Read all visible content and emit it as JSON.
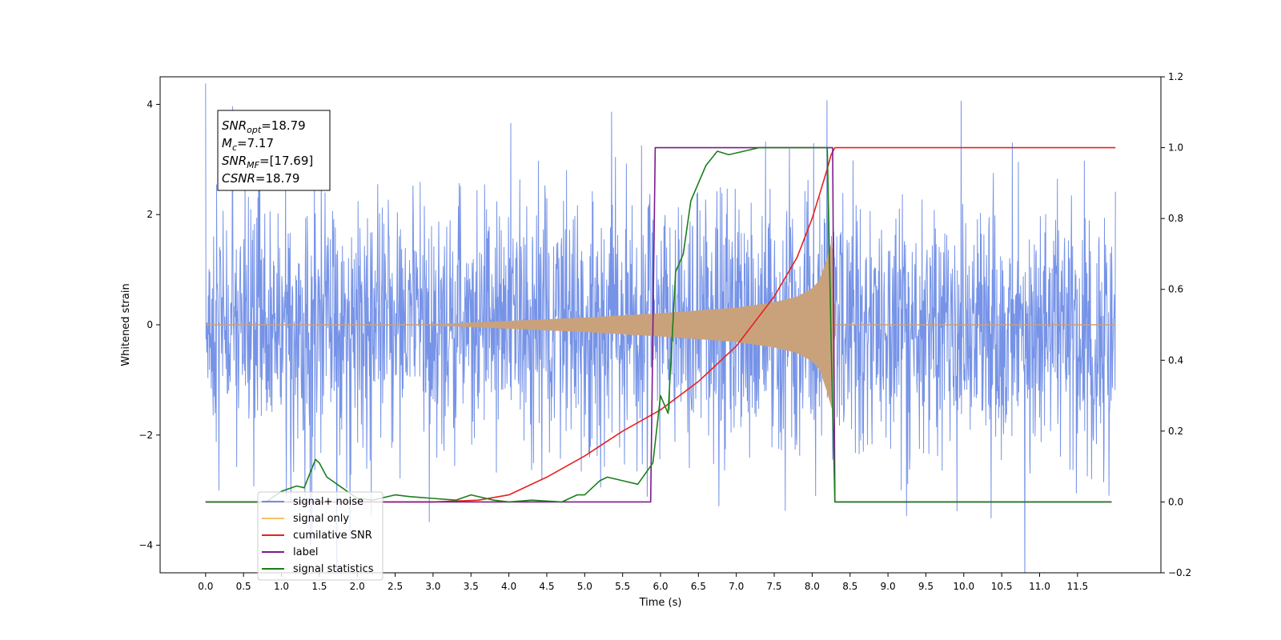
{
  "chart_data": {
    "type": "line",
    "xlabel": "Time (s)",
    "ylabel": "Whitened strain",
    "xlim": [
      -0.6,
      12.6
    ],
    "ylim": [
      -4.5,
      4.5
    ],
    "y2lim": [
      -0.2,
      1.2
    ],
    "x_ticks": [
      0.0,
      0.5,
      1.0,
      1.5,
      2.0,
      2.5,
      3.0,
      3.5,
      4.0,
      4.5,
      5.0,
      5.5,
      6.0,
      6.5,
      7.0,
      7.5,
      8.0,
      8.5,
      9.0,
      9.5,
      10.0,
      10.5,
      11.0,
      11.5
    ],
    "x_tick_labels": [
      "0.0",
      "0.5",
      "1.0",
      "1.5",
      "2.0",
      "2.5",
      "3.0",
      "3.5",
      "4.0",
      "4.5",
      "5.0",
      "5.5",
      "6.0",
      "6.5",
      "7.0",
      "7.5",
      "8.0",
      "8.5",
      "9.0",
      "9.5",
      "10.0",
      "10.5",
      "11.0",
      "11.5"
    ],
    "y_ticks": [
      -4,
      -2,
      0,
      2,
      4
    ],
    "y_tick_labels": [
      "−4",
      "−2",
      "0",
      "2",
      "4"
    ],
    "y2_ticks": [
      -0.2,
      0.0,
      0.2,
      0.4,
      0.6,
      0.8,
      1.0,
      1.2
    ],
    "y2_tick_labels": [
      "−0.2",
      "0.0",
      "0.2",
      "0.4",
      "0.6",
      "0.8",
      "1.0",
      "1.2"
    ],
    "grid": false,
    "legend_position": "lower-left",
    "annotation": {
      "lines": [
        {
          "sym": "SNR",
          "sub": "opt",
          "value": "=18.79"
        },
        {
          "sym": "M",
          "sub": "c",
          "value": "=7.17"
        },
        {
          "sym": "SNR",
          "sub": "MF",
          "value": "=[17.69]"
        },
        {
          "sym": "CSNR",
          "sub": "",
          "value": "=18.79"
        }
      ]
    },
    "series": [
      {
        "name": "signal+ noise",
        "color": "#6f8de6",
        "axis": "left",
        "kind": "noise",
        "typical_amplitude": 1.5,
        "peak_amplitude": 4.1,
        "x_range": [
          0.0,
          12.0
        ]
      },
      {
        "name": "signal only",
        "color": "#c9a27c",
        "axis": "left",
        "kind": "chirp",
        "x_range": [
          0.0,
          12.0
        ],
        "envelope": {
          "x": [
            0.0,
            3.0,
            4.0,
            5.0,
            6.0,
            6.5,
            7.0,
            7.5,
            7.8,
            8.0,
            8.1,
            8.2,
            8.26,
            8.3,
            12.0
          ],
          "y": [
            0.0,
            0.0,
            0.06,
            0.12,
            0.2,
            0.25,
            0.3,
            0.4,
            0.5,
            0.65,
            0.8,
            1.2,
            1.5,
            0.0,
            0.0
          ]
        }
      },
      {
        "name": "cumilative SNR",
        "color": "#e8201d",
        "axis": "right",
        "x": [
          0.0,
          3.0,
          3.6,
          4.0,
          4.5,
          5.0,
          5.5,
          6.0,
          6.5,
          7.0,
          7.5,
          7.8,
          8.0,
          8.1,
          8.2,
          8.25,
          8.3,
          12.0
        ],
        "y": [
          0.0,
          0.0,
          0.005,
          0.02,
          0.07,
          0.13,
          0.2,
          0.26,
          0.34,
          0.44,
          0.58,
          0.69,
          0.8,
          0.87,
          0.94,
          0.98,
          1.0,
          1.0
        ]
      },
      {
        "name": "label",
        "color": "#7b1a8c",
        "axis": "right",
        "x": [
          0.0,
          5.87,
          5.93,
          8.27,
          8.3,
          11.95
        ],
        "y": [
          0.0,
          0.0,
          1.0,
          1.0,
          0.0,
          0.0
        ]
      },
      {
        "name": "signal statistics",
        "color": "#1a7f1a",
        "axis": "right",
        "x": [
          0.0,
          0.8,
          1.0,
          1.2,
          1.3,
          1.45,
          1.5,
          1.6,
          1.8,
          2.0,
          2.2,
          2.5,
          2.7,
          3.0,
          3.3,
          3.5,
          3.8,
          4.0,
          4.3,
          4.7,
          4.9,
          5.0,
          5.2,
          5.3,
          5.5,
          5.7,
          5.9,
          6.0,
          6.1,
          6.2,
          6.3,
          6.4,
          6.5,
          6.6,
          6.75,
          6.9,
          7.1,
          7.3,
          7.5,
          8.2,
          8.25,
          8.3,
          11.95
        ],
        "y": [
          0.0,
          0.0,
          0.03,
          0.045,
          0.04,
          0.12,
          0.11,
          0.07,
          0.04,
          0.01,
          0.005,
          0.02,
          0.015,
          0.01,
          0.005,
          0.02,
          0.005,
          0.0,
          0.005,
          0.0,
          0.02,
          0.02,
          0.06,
          0.07,
          0.06,
          0.05,
          0.11,
          0.3,
          0.25,
          0.65,
          0.7,
          0.85,
          0.9,
          0.95,
          0.99,
          0.98,
          0.99,
          1.0,
          1.0,
          1.0,
          0.45,
          0.0,
          0.0
        ]
      }
    ],
    "legend": [
      "signal+ noise",
      "signal only",
      "cumilative SNR",
      "label",
      "signal statistics"
    ]
  }
}
